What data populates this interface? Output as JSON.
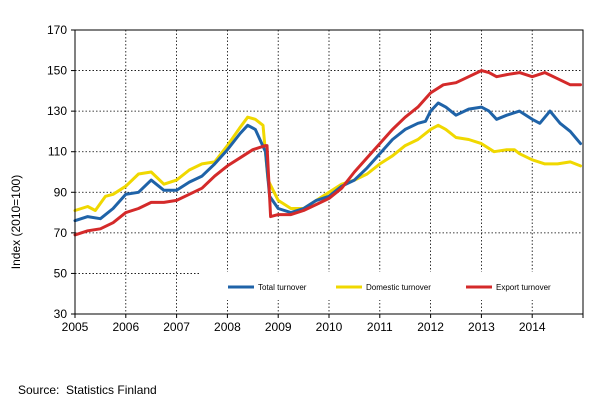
{
  "chart_data": {
    "type": "line",
    "title": "",
    "xlabel": "",
    "ylabel": "Index (2010=100)",
    "xlim": [
      2005,
      2015
    ],
    "ylim": [
      30,
      170
    ],
    "y_ticks": [
      30,
      50,
      70,
      90,
      110,
      130,
      150,
      170
    ],
    "x_tick_labels": [
      "2005",
      "2006",
      "2007",
      "2008",
      "2009",
      "2010",
      "2011",
      "2012",
      "2013",
      "2014"
    ],
    "grid": true,
    "legend_position": "bottom-right inside plot",
    "series": [
      {
        "name": "Total turnover",
        "color": "#1f63a8",
        "points": [
          [
            2005.0,
            76
          ],
          [
            2005.25,
            78
          ],
          [
            2005.5,
            77
          ],
          [
            2005.75,
            82
          ],
          [
            2006.0,
            89
          ],
          [
            2006.25,
            90
          ],
          [
            2006.5,
            96
          ],
          [
            2006.75,
            91
          ],
          [
            2007.0,
            91
          ],
          [
            2007.25,
            95
          ],
          [
            2007.5,
            98
          ],
          [
            2007.75,
            104
          ],
          [
            2008.0,
            111
          ],
          [
            2008.25,
            119
          ],
          [
            2008.4,
            123
          ],
          [
            2008.55,
            121
          ],
          [
            2008.75,
            110
          ],
          [
            2008.83,
            88
          ],
          [
            2009.0,
            82
          ],
          [
            2009.25,
            80
          ],
          [
            2009.5,
            82
          ],
          [
            2009.75,
            86
          ],
          [
            2010.0,
            88
          ],
          [
            2010.25,
            93
          ],
          [
            2010.5,
            96
          ],
          [
            2010.75,
            102
          ],
          [
            2011.0,
            109
          ],
          [
            2011.25,
            116
          ],
          [
            2011.5,
            121
          ],
          [
            2011.75,
            124
          ],
          [
            2011.9,
            125
          ],
          [
            2012.0,
            130
          ],
          [
            2012.15,
            134
          ],
          [
            2012.3,
            132
          ],
          [
            2012.5,
            128
          ],
          [
            2012.75,
            131
          ],
          [
            2013.0,
            132
          ],
          [
            2013.15,
            130
          ],
          [
            2013.3,
            126
          ],
          [
            2013.5,
            128
          ],
          [
            2013.75,
            130
          ],
          [
            2014.0,
            126
          ],
          [
            2014.15,
            124
          ],
          [
            2014.35,
            130
          ],
          [
            2014.55,
            124
          ],
          [
            2014.75,
            120
          ],
          [
            2014.95,
            114
          ]
        ]
      },
      {
        "name": "Domestic turnover",
        "color": "#f0d800",
        "points": [
          [
            2005.0,
            81
          ],
          [
            2005.25,
            83
          ],
          [
            2005.4,
            81
          ],
          [
            2005.6,
            88
          ],
          [
            2005.75,
            89
          ],
          [
            2006.0,
            93
          ],
          [
            2006.25,
            99
          ],
          [
            2006.5,
            100
          ],
          [
            2006.75,
            94
          ],
          [
            2007.0,
            96
          ],
          [
            2007.25,
            101
          ],
          [
            2007.5,
            104
          ],
          [
            2007.75,
            105
          ],
          [
            2008.0,
            113
          ],
          [
            2008.25,
            122
          ],
          [
            2008.4,
            127
          ],
          [
            2008.55,
            126
          ],
          [
            2008.7,
            123
          ],
          [
            2008.8,
            96
          ],
          [
            2009.0,
            86
          ],
          [
            2009.25,
            82
          ],
          [
            2009.5,
            82
          ],
          [
            2009.75,
            86
          ],
          [
            2010.0,
            90
          ],
          [
            2010.25,
            94
          ],
          [
            2010.5,
            96
          ],
          [
            2010.75,
            99
          ],
          [
            2011.0,
            104
          ],
          [
            2011.25,
            108
          ],
          [
            2011.5,
            113
          ],
          [
            2011.75,
            116
          ],
          [
            2012.0,
            121
          ],
          [
            2012.15,
            123
          ],
          [
            2012.3,
            121
          ],
          [
            2012.5,
            117
          ],
          [
            2012.75,
            116
          ],
          [
            2013.0,
            114
          ],
          [
            2013.25,
            110
          ],
          [
            2013.5,
            111
          ],
          [
            2013.65,
            111
          ],
          [
            2013.75,
            109
          ],
          [
            2014.0,
            106
          ],
          [
            2014.25,
            104
          ],
          [
            2014.5,
            104
          ],
          [
            2014.75,
            105
          ],
          [
            2014.95,
            103
          ]
        ]
      },
      {
        "name": "Export turnover",
        "color": "#d42a2a",
        "points": [
          [
            2005.0,
            69
          ],
          [
            2005.25,
            71
          ],
          [
            2005.5,
            72
          ],
          [
            2005.75,
            75
          ],
          [
            2006.0,
            80
          ],
          [
            2006.25,
            82
          ],
          [
            2006.5,
            85
          ],
          [
            2006.75,
            85
          ],
          [
            2007.0,
            86
          ],
          [
            2007.25,
            89
          ],
          [
            2007.5,
            92
          ],
          [
            2007.75,
            98
          ],
          [
            2008.0,
            103
          ],
          [
            2008.25,
            107
          ],
          [
            2008.5,
            111
          ],
          [
            2008.75,
            113
          ],
          [
            2008.78,
            113
          ],
          [
            2008.85,
            78
          ],
          [
            2009.0,
            79
          ],
          [
            2009.25,
            79
          ],
          [
            2009.5,
            81
          ],
          [
            2009.75,
            84
          ],
          [
            2010.0,
            87
          ],
          [
            2010.25,
            92
          ],
          [
            2010.5,
            100
          ],
          [
            2010.75,
            107
          ],
          [
            2011.0,
            114
          ],
          [
            2011.25,
            121
          ],
          [
            2011.5,
            127
          ],
          [
            2011.75,
            132
          ],
          [
            2012.0,
            139
          ],
          [
            2012.25,
            143
          ],
          [
            2012.5,
            144
          ],
          [
            2012.75,
            147
          ],
          [
            2013.0,
            150
          ],
          [
            2013.15,
            149
          ],
          [
            2013.3,
            147
          ],
          [
            2013.5,
            148
          ],
          [
            2013.75,
            149
          ],
          [
            2014.0,
            147
          ],
          [
            2014.25,
            149
          ],
          [
            2014.5,
            146
          ],
          [
            2014.75,
            143
          ],
          [
            2014.95,
            143
          ]
        ]
      }
    ]
  },
  "source_text": "Source:  Statistics Finland"
}
